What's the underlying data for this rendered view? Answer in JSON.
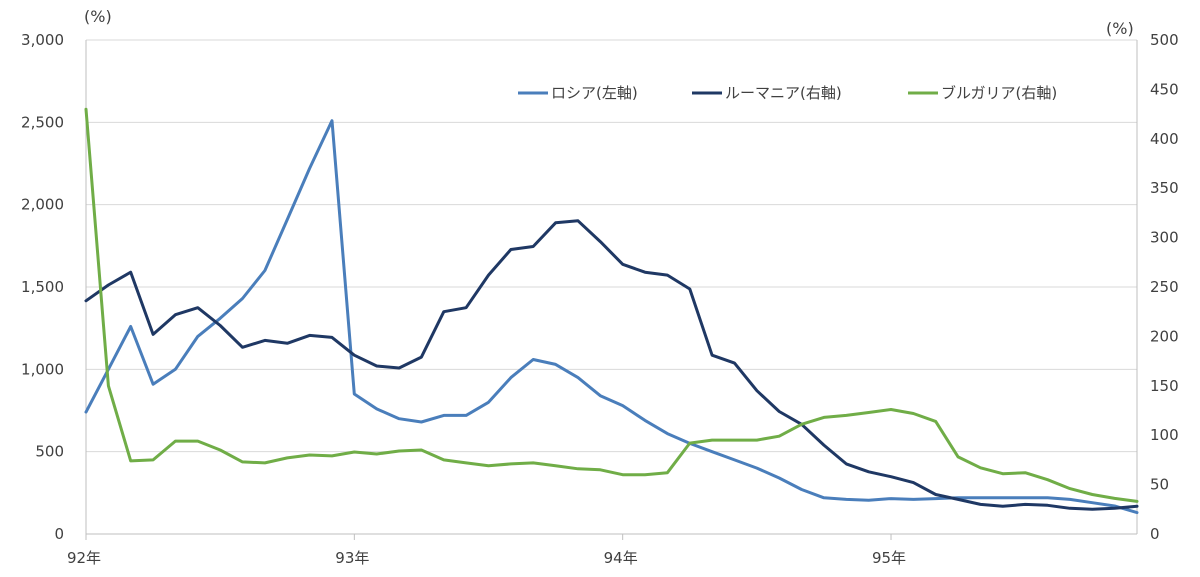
{
  "chart_data": {
    "type": "line",
    "left_axis": {
      "unit": "(%)",
      "ylim": [
        0,
        3000
      ],
      "ticks": [
        0,
        500,
        1000,
        1500,
        2000,
        2500,
        3000
      ],
      "tick_labels": [
        "0",
        "500",
        "1,000",
        "1,500",
        "2,000",
        "2,500",
        "3,000"
      ]
    },
    "right_axis": {
      "unit": "(%)",
      "ylim": [
        0,
        500
      ],
      "ticks": [
        0,
        50,
        100,
        150,
        200,
        250,
        300,
        350,
        400,
        450,
        500
      ],
      "tick_labels": [
        "0",
        "50",
        "100",
        "150",
        "200",
        "250",
        "300",
        "350",
        "400",
        "450",
        "500"
      ]
    },
    "x_axis": {
      "start": "1992-01",
      "end": "1995-12",
      "tick_labels": [
        "92年",
        "93年",
        "94年",
        "95年"
      ],
      "tick_months_index": [
        0,
        12,
        24,
        36
      ]
    },
    "grid": {
      "horizontal": true,
      "vertical": false
    },
    "legend": {
      "position": "top-right"
    },
    "series": [
      {
        "name": "ロシア(左軸)",
        "axis": "left",
        "color": "#4a7ebb",
        "values": [
          740,
          1000,
          1260,
          910,
          1000,
          1200,
          1310,
          1430,
          1600,
          1910,
          2220,
          2510,
          850,
          760,
          700,
          680,
          720,
          720,
          800,
          950,
          1060,
          1030,
          950,
          840,
          780,
          690,
          610,
          550,
          500,
          450,
          400,
          340,
          270,
          220,
          210,
          205,
          215,
          210,
          215,
          220,
          220,
          220,
          220,
          220,
          210,
          190,
          170,
          130
        ]
      },
      {
        "name": "ルーマニア(右軸)",
        "axis": "right",
        "color": "#1f3864",
        "values": [
          236,
          252,
          265,
          202,
          222,
          229,
          211,
          189,
          196,
          193,
          201,
          199,
          181,
          170,
          168,
          179,
          225,
          229,
          262,
          288,
          291,
          315,
          317,
          296,
          273,
          265,
          262,
          248,
          181,
          173,
          145,
          124,
          111,
          90,
          71,
          63,
          58,
          52,
          40,
          35,
          30,
          28,
          30,
          29,
          26,
          25,
          26,
          28
        ]
      },
      {
        "name": "ブルガリア(右軸)",
        "axis": "right",
        "color": "#70ad47",
        "values": [
          430,
          150,
          74,
          75,
          94,
          94,
          85,
          73,
          72,
          77,
          80,
          79,
          83,
          81,
          84,
          85,
          75,
          72,
          69,
          71,
          72,
          69,
          66,
          65,
          60,
          60,
          62,
          92,
          95,
          95,
          95,
          99,
          111,
          118,
          120,
          123,
          126,
          122,
          114,
          78,
          67,
          61,
          62,
          55,
          46,
          40,
          36,
          33
        ]
      }
    ]
  }
}
